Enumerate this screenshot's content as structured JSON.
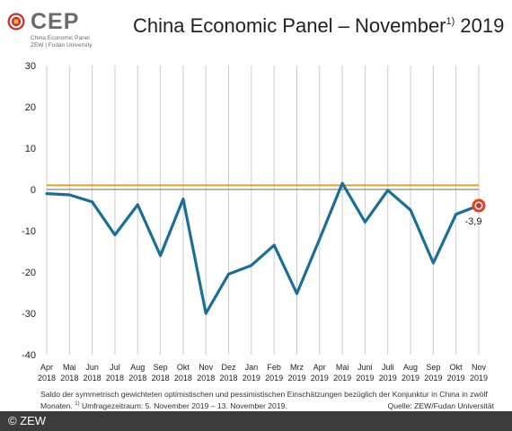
{
  "header": {
    "logo_name": "CEP",
    "logo_line1": "China Economic Panel",
    "logo_line2": "ZEW | Fudan University",
    "title_main": "China Economic Panel – November",
    "title_sup": "1)",
    "title_year": "2019"
  },
  "chart_data": {
    "type": "line",
    "title": "China Economic Panel – November 2019",
    "x": [
      "Apr 2018",
      "Mai 2018",
      "Jun 2018",
      "Jul 2018",
      "Aug 2018",
      "Sep 2018",
      "Okt 2018",
      "Nov 2018",
      "Dez 2018",
      "Jan 2019",
      "Feb 2019",
      "Mrz 2019",
      "Apr 2019",
      "Mai 2019",
      "Juni 2019",
      "Juli 2019",
      "Aug 2019",
      "Sep 2019",
      "Okt 2019",
      "Nov 2019"
    ],
    "x_month_labels": [
      "Apr",
      "Mai",
      "Jun",
      "Jul",
      "Aug",
      "Sep",
      "Okt",
      "Nov",
      "Dez",
      "Jan",
      "Feb",
      "Mrz",
      "Apr",
      "Mai",
      "Juni",
      "Juli",
      "Aug",
      "Sep",
      "Okt",
      "Nov"
    ],
    "x_year_labels": [
      "2018",
      "2018",
      "2018",
      "2018",
      "2018",
      "2018",
      "2018",
      "2018",
      "2018",
      "2019",
      "2019",
      "2019",
      "2019",
      "2019",
      "2019",
      "2019",
      "2019",
      "2019",
      "2019",
      "2019"
    ],
    "series": [
      {
        "values": [
          -1.0,
          -1.3,
          -3.0,
          -11.0,
          -3.7,
          -16.0,
          -2.3,
          -30.0,
          -20.5,
          -18.4,
          -13.5,
          -25.2,
          -12.0,
          1.5,
          -7.9,
          -0.2,
          -5.0,
          -17.8,
          -6.0,
          -3.9
        ]
      }
    ],
    "reference_line": 1.0,
    "ylim": [
      -40,
      30
    ],
    "yticks": [
      30,
      20,
      10,
      0,
      -10,
      -20,
      -30,
      -40
    ],
    "grid": "vertical",
    "annotation": "-3,9",
    "colors": {
      "line": "#1a6f96",
      "reference": "#e0a12a",
      "zero": "#888888",
      "grid": "#cccccc",
      "marker": "#e8401c"
    }
  },
  "footer": {
    "note_line1": "Saldo der symmetrisch gewichteten optimistischen und pessimistischen Einschätzungen bezüglich der Konjunktur in China in zwölf",
    "note_line2_prefix": "Monaten.",
    "note_sup": "1)",
    "note_line2": "Umfragezeitraum: 5. November 2019 – 13. November 2019.",
    "source": "Quelle: ZEW/Fudan Universität",
    "copyright": "© ZEW"
  }
}
